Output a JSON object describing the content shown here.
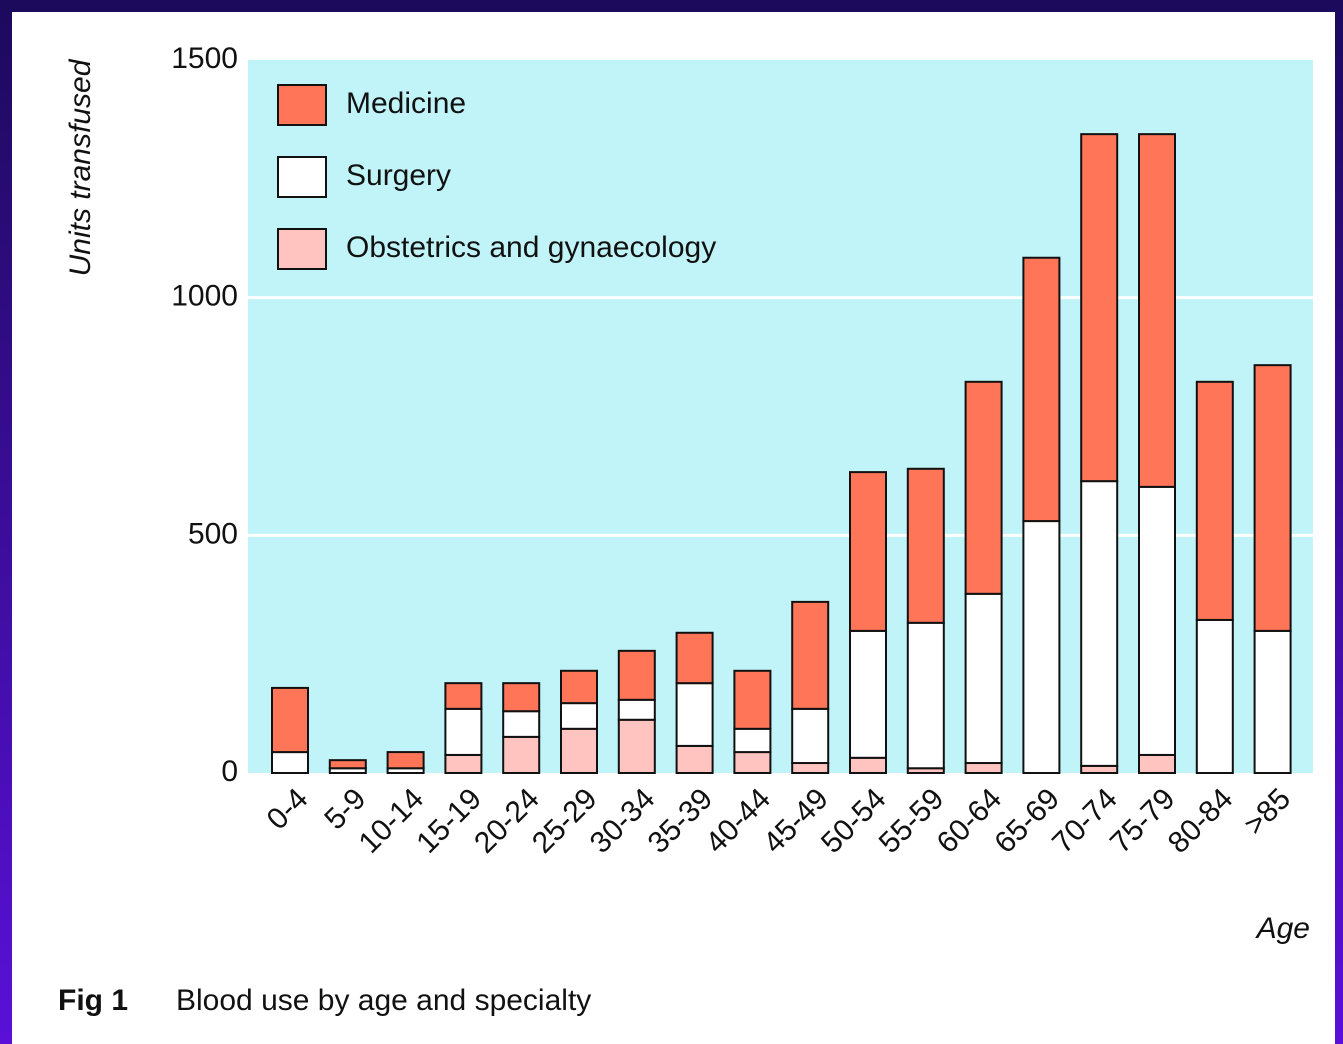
{
  "chart_data": {
    "type": "stacked_bar",
    "y_label": "Units transfused",
    "x_label": "Age",
    "caption_label": "Fig 1",
    "caption": "Blood use by age and specialty",
    "categories": [
      "0-4",
      "5-9",
      "10-14",
      "15-19",
      "20-24",
      "25-29",
      "30-34",
      "35-39",
      "40-44",
      "45-49",
      "50-54",
      "55-59",
      "60-64",
      "65-69",
      "70-74",
      "75-79",
      "80-84",
      ">85"
    ],
    "series": [
      {
        "name": "Obstetrics and gynaecology",
        "color": "#ffc4c0",
        "values": [
          0,
          0,
          0,
          38,
          76,
          93,
          112,
          57,
          44,
          21,
          32,
          10,
          21,
          0,
          15,
          38,
          0,
          0
        ]
      },
      {
        "name": "Surgery",
        "color": "#ffffff",
        "values": [
          44,
          10,
          10,
          97,
          54,
          54,
          42,
          132,
          49,
          114,
          267,
          306,
          356,
          530,
          599,
          564,
          322,
          299
        ]
      },
      {
        "name": "Medicine",
        "color": "#ff7558",
        "values": [
          135,
          17,
          34,
          54,
          59,
          68,
          103,
          106,
          122,
          225,
          334,
          324,
          446,
          554,
          730,
          742,
          501,
          559
        ]
      }
    ],
    "legend_order": [
      2,
      1,
      0
    ],
    "ylim": [
      0,
      1500
    ],
    "yticks": [
      0,
      500,
      1000,
      1500
    ],
    "grid": true,
    "legend": "upper left"
  }
}
